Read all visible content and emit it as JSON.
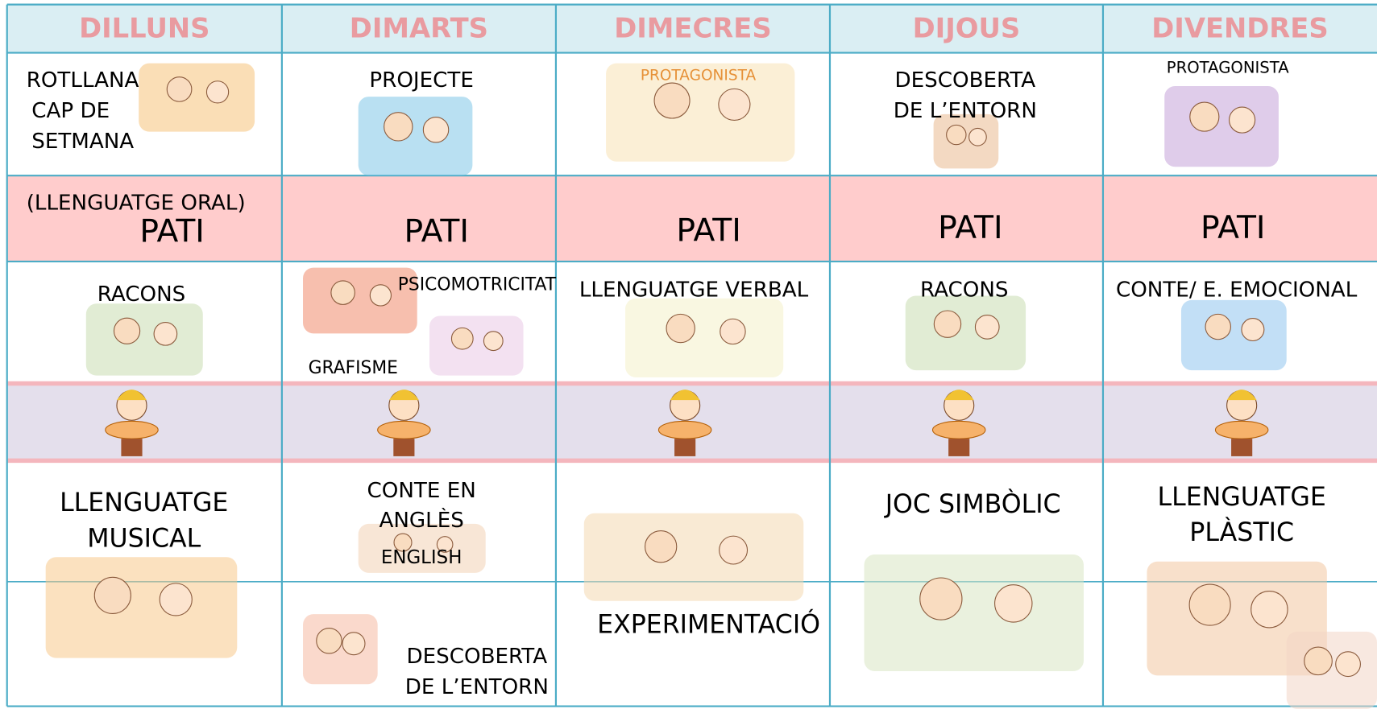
{
  "header": {
    "days": [
      "DILLUNS",
      "DIMARTS",
      "DIMECRES",
      "DIJOUS",
      "DIVENDRES"
    ]
  },
  "texts": [
    {
      "lines": [
        "ROTLLANA",
        "CAP DE",
        "SETMANA"
      ]
    },
    {
      "lines": [
        "PROJECTE"
      ]
    },
    {
      "lines": [
        "PROTAGONISTA"
      ]
    },
    {
      "lines": [
        "DESCOBERTA",
        "DE L’ENTORN"
      ]
    },
    {
      "lines": [
        "PROTAGONISTA"
      ]
    },
    {
      "lines": [
        "(LLENGUATGE ORAL)"
      ]
    },
    {
      "lines": [
        "PATI"
      ]
    },
    {
      "lines": [
        "PATI"
      ]
    },
    {
      "lines": [
        "PATI"
      ]
    },
    {
      "lines": [
        "PATI"
      ]
    },
    {
      "lines": [
        "PATI"
      ]
    },
    {
      "lines": [
        "RACONS"
      ]
    },
    {
      "lines": [
        "PSICOMOTRICITAT"
      ]
    },
    {
      "lines": [
        "GRAFISME"
      ]
    },
    {
      "lines": [
        "LLENGUATGE VERBAL"
      ]
    },
    {
      "lines": [
        "RACONS"
      ]
    },
    {
      "lines": [
        "CONTE/ E. EMOCIONAL"
      ]
    },
    {
      "lines": [
        "LLENGUATGE",
        "MUSICAL"
      ]
    },
    {
      "lines": [
        "CONTE EN",
        "ANGLÈS"
      ]
    },
    {
      "lines": [
        "ENGLISH"
      ]
    },
    {
      "lines": [
        "EXPERIMENTACIÓ"
      ]
    },
    {
      "lines": [
        "JOC SIMBÒLIC"
      ]
    },
    {
      "lines": [
        "LLENGUATGE",
        "PLÀSTIC"
      ]
    },
    {
      "lines": [
        "DESCOBERTA",
        "DE L’ENTORN"
      ]
    }
  ]
}
